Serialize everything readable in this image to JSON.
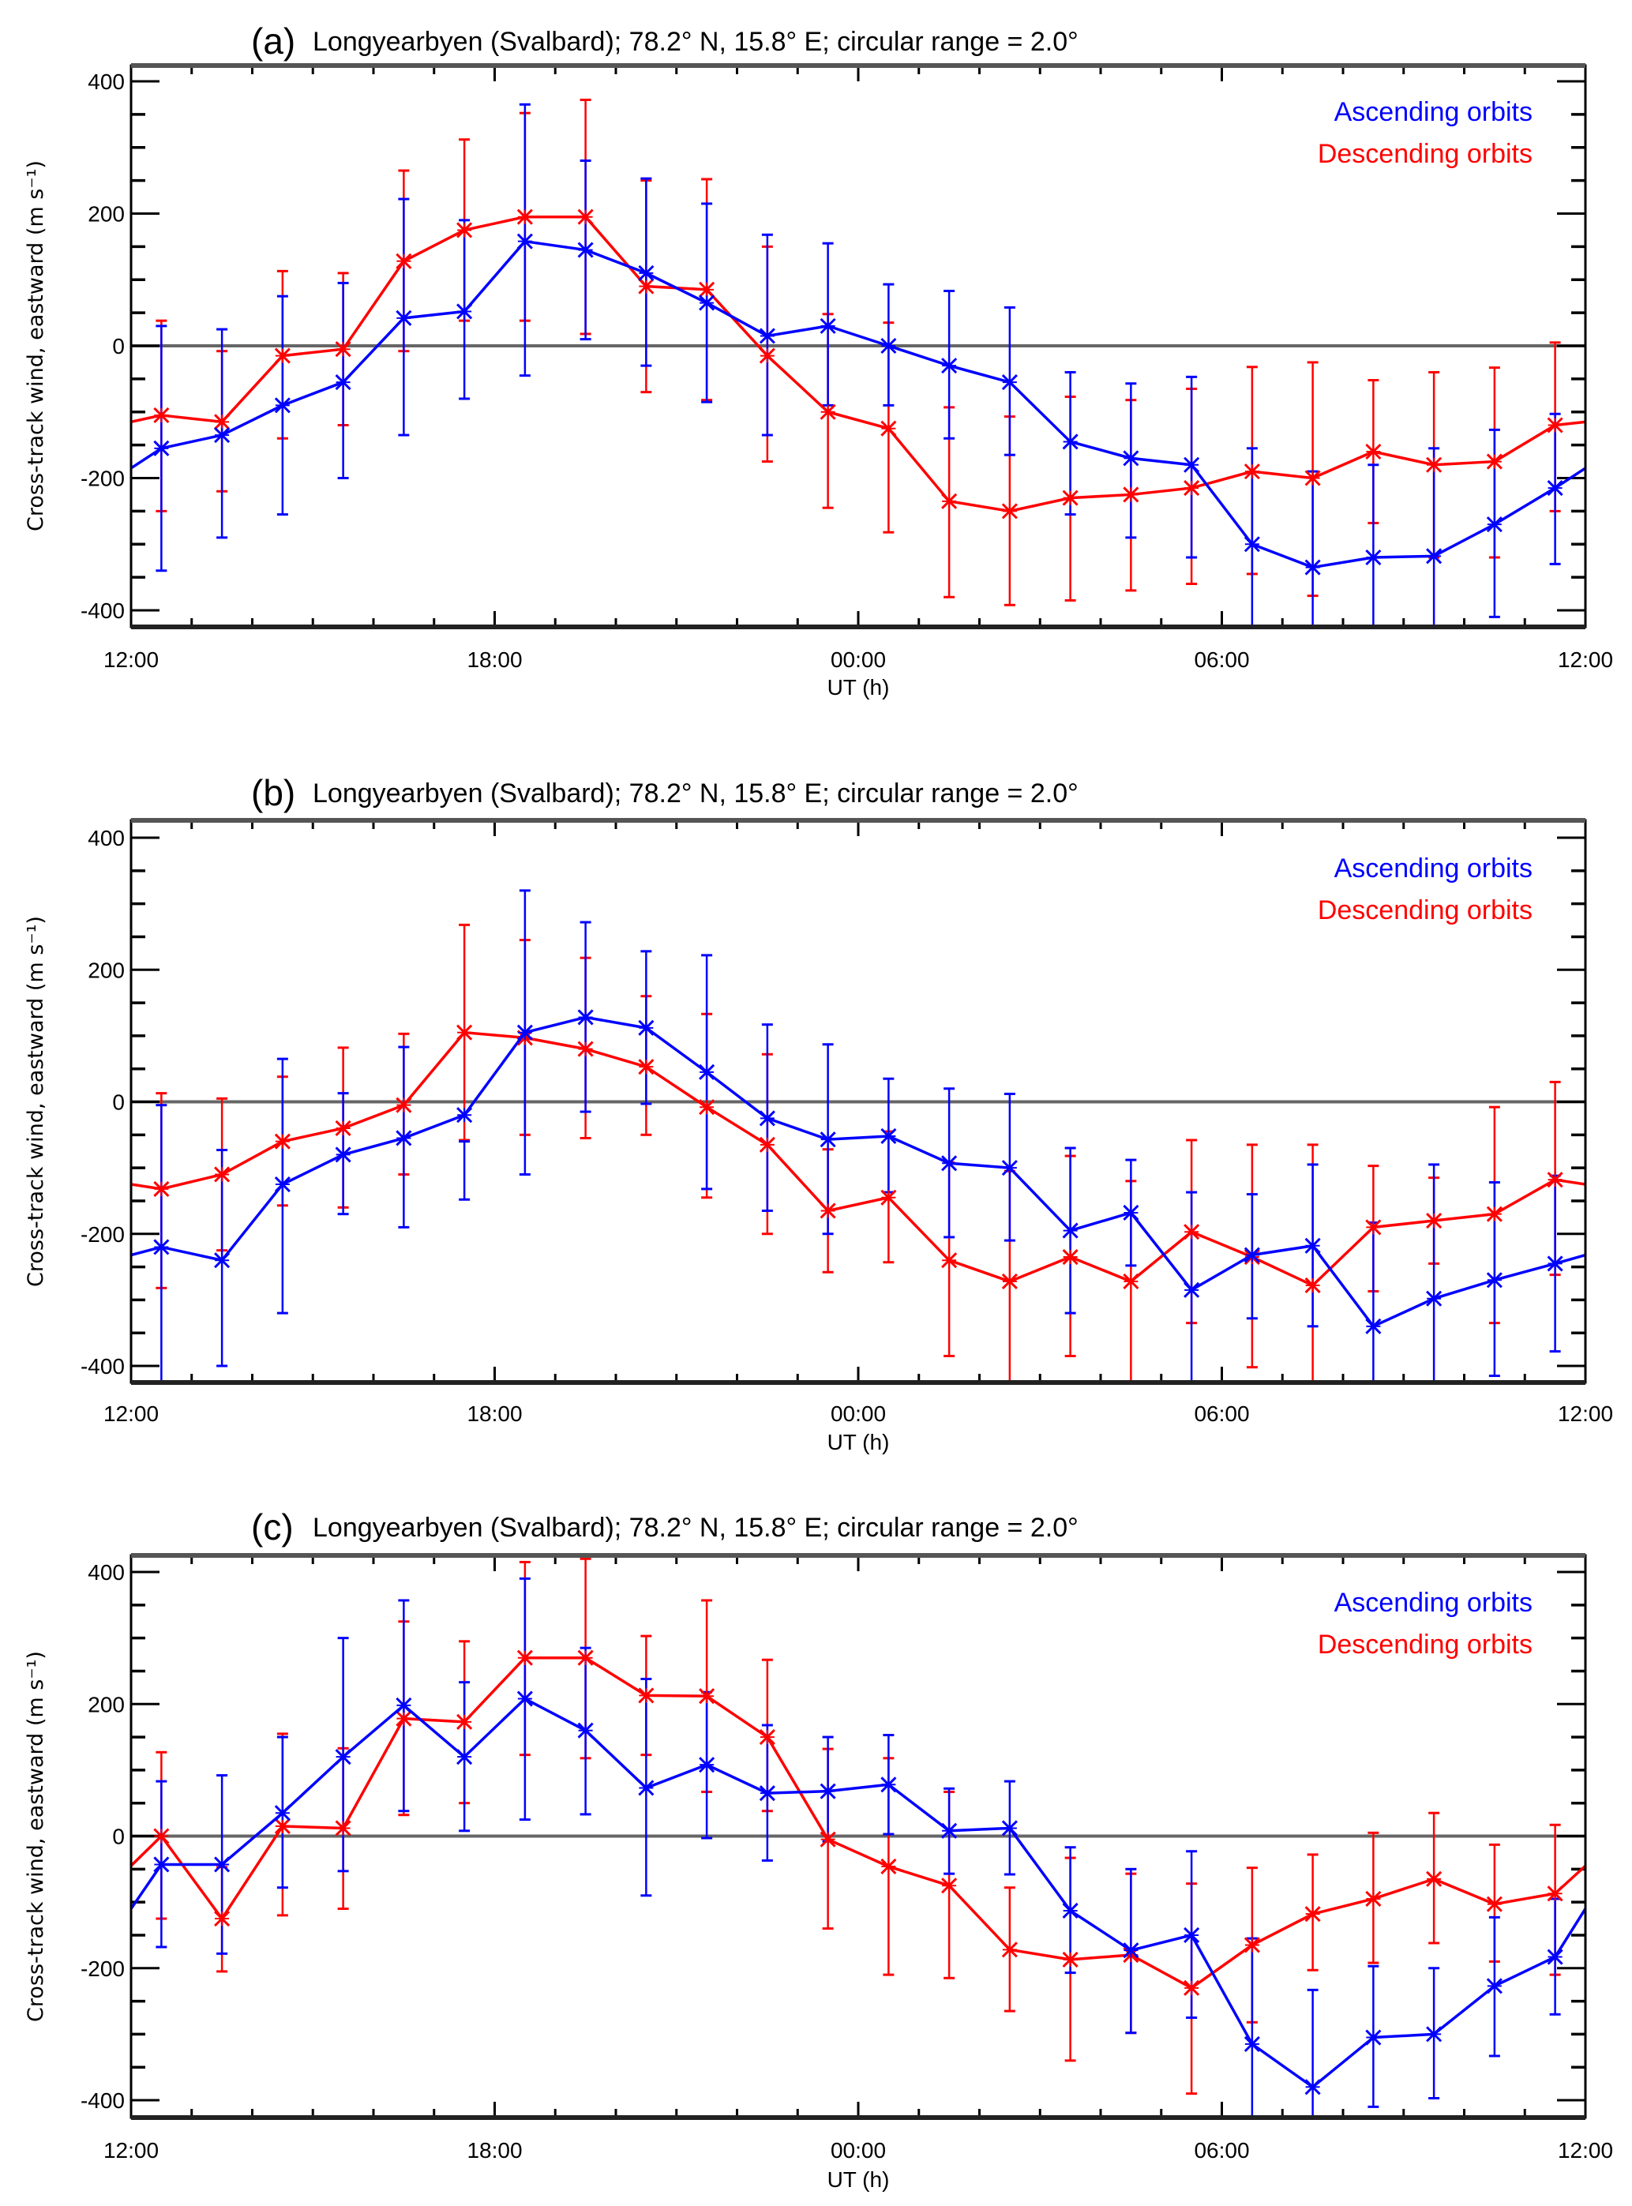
{
  "figure": {
    "colors": {
      "ascending": "#0000ff",
      "descending": "#ff0000",
      "zero_line": "#666666",
      "axis": "#000000"
    }
  },
  "chart_data": [
    {
      "type": "line",
      "panel_tag": "(a)",
      "title": "Longyearbyen (Svalbard); 78.2° N, 15.8° E; circular range = 2.0°",
      "xlabel": "UT (h)",
      "ylabel": "Cross-track wind, eastward (m s⁻¹)",
      "x_tick_labels": [
        "12:00",
        "18:00",
        "00:00",
        "06:00",
        "12:00"
      ],
      "x_range_hours": [
        0,
        24
      ],
      "y_tick_labels": [
        "400",
        "200",
        "0",
        "-200",
        "-400"
      ],
      "ylim": [
        -430,
        430
      ],
      "legend": {
        "placement": "top-right",
        "entries": [
          "Ascending orbits",
          "Descending orbits"
        ]
      },
      "x": [
        0.5,
        1.5,
        2.5,
        3.5,
        4.5,
        5.5,
        6.5,
        7.5,
        8.5,
        9.5,
        10.5,
        11.5,
        12.5,
        13.5,
        14.5,
        15.5,
        16.5,
        17.5,
        18.5,
        19.5,
        20.5,
        21.5,
        22.5,
        23.5
      ],
      "series": [
        {
          "name": "Ascending orbits",
          "color": "#0000ff",
          "edge_values": [
            -185,
            -185
          ],
          "values": [
            -155,
            -135,
            -90,
            -55,
            42,
            52,
            158,
            145,
            110,
            65,
            15,
            30,
            0,
            -30,
            -55,
            -145,
            -170,
            -180,
            -300,
            -335,
            -320,
            -318,
            -270,
            -215
          ],
          "err_low": [
            -340,
            -290,
            -255,
            -200,
            -135,
            -80,
            -45,
            10,
            -30,
            -85,
            -135,
            -90,
            -90,
            -140,
            -165,
            -255,
            -290,
            -320,
            -430,
            -430,
            -430,
            -430,
            -410,
            -330
          ],
          "err_high": [
            30,
            25,
            75,
            95,
            222,
            190,
            365,
            280,
            253,
            215,
            168,
            155,
            93,
            83,
            58,
            -40,
            -57,
            -47,
            -155,
            -190,
            -180,
            -155,
            -127,
            -103
          ]
        },
        {
          "name": "Descending orbits",
          "color": "#ff0000",
          "edge_values": [
            -115,
            -115
          ],
          "values": [
            -105,
            -115,
            -15,
            -5,
            128,
            175,
            195,
            195,
            90,
            85,
            -15,
            -100,
            -125,
            -235,
            -250,
            -230,
            -225,
            -215,
            -190,
            -200,
            -160,
            -180,
            -175,
            -120
          ],
          "err_low": [
            -250,
            -220,
            -140,
            -120,
            -8,
            38,
            38,
            18,
            -70,
            -82,
            -175,
            -245,
            -282,
            -380,
            -392,
            -385,
            -370,
            -360,
            -345,
            -378,
            -268,
            -320,
            -320,
            -250
          ],
          "err_high": [
            38,
            -8,
            113,
            110,
            265,
            312,
            352,
            372,
            250,
            252,
            150,
            48,
            35,
            -93,
            -107,
            -77,
            -82,
            -65,
            -32,
            -25,
            -52,
            -40,
            -33,
            5
          ]
        }
      ]
    },
    {
      "type": "line",
      "panel_tag": "(b)",
      "title": "Longyearbyen (Svalbard); 78.2° N, 15.8° E; circular range = 2.0°",
      "xlabel": "UT (h)",
      "ylabel": "Cross-track wind, eastward (m s⁻¹)",
      "x_tick_labels": [
        "12:00",
        "18:00",
        "00:00",
        "06:00",
        "12:00"
      ],
      "x_range_hours": [
        0,
        24
      ],
      "y_tick_labels": [
        "400",
        "200",
        "0",
        "-200",
        "-400"
      ],
      "ylim": [
        -430,
        430
      ],
      "legend": {
        "placement": "top-right",
        "entries": [
          "Ascending orbits",
          "Descending orbits"
        ]
      },
      "x": [
        0.5,
        1.5,
        2.5,
        3.5,
        4.5,
        5.5,
        6.5,
        7.5,
        8.5,
        9.5,
        10.5,
        11.5,
        12.5,
        13.5,
        14.5,
        15.5,
        16.5,
        17.5,
        18.5,
        19.5,
        20.5,
        21.5,
        22.5,
        23.5
      ],
      "series": [
        {
          "name": "Ascending orbits",
          "color": "#0000ff",
          "edge_values": [
            -232,
            -232
          ],
          "values": [
            -220,
            -240,
            -125,
            -80,
            -55,
            -20,
            105,
            128,
            112,
            45,
            -25,
            -57,
            -52,
            -93,
            -100,
            -195,
            -168,
            -285,
            -232,
            -218,
            -340,
            -298,
            -270,
            -245
          ],
          "err_low": [
            -430,
            -400,
            -320,
            -170,
            -190,
            -148,
            -110,
            -15,
            -3,
            -132,
            -165,
            -200,
            -137,
            -205,
            -210,
            -320,
            -248,
            -430,
            -328,
            -340,
            -430,
            -430,
            -415,
            -378
          ],
          "err_high": [
            -5,
            -73,
            65,
            13,
            83,
            -60,
            320,
            272,
            228,
            222,
            117,
            87,
            35,
            20,
            12,
            -70,
            -88,
            -137,
            -140,
            -95,
            -183,
            -95,
            -122,
            -112
          ]
        },
        {
          "name": "Descending orbits",
          "color": "#ff0000",
          "edge_values": [
            -125,
            -125
          ],
          "values": [
            -132,
            -110,
            -60,
            -40,
            -5,
            105,
            97,
            80,
            53,
            -8,
            -65,
            -165,
            -145,
            -240,
            -272,
            -235,
            -272,
            -197,
            -235,
            -278,
            -190,
            -180,
            -170,
            -118
          ],
          "err_low": [
            -282,
            -225,
            -157,
            -160,
            -110,
            -58,
            -50,
            -55,
            -50,
            -145,
            -200,
            -258,
            -243,
            -385,
            -430,
            -385,
            -430,
            -335,
            -402,
            -430,
            -287,
            -245,
            -335,
            -262
          ],
          "err_high": [
            13,
            5,
            38,
            82,
            103,
            268,
            245,
            218,
            160,
            133,
            72,
            -72,
            -45,
            -92,
            -105,
            -82,
            -120,
            -58,
            -65,
            -65,
            -97,
            -115,
            -8,
            30
          ]
        }
      ]
    },
    {
      "type": "line",
      "panel_tag": "(c)",
      "title": "Longyearbyen (Svalbard); 78.2° N, 15.8° E; circular range = 2.0°",
      "xlabel": "UT (h)",
      "ylabel": "Cross-track wind, eastward (m s⁻¹)",
      "x_tick_labels": [
        "12:00",
        "18:00",
        "00:00",
        "06:00",
        "12:00"
      ],
      "x_range_hours": [
        0,
        24
      ],
      "y_tick_labels": [
        "400",
        "200",
        "0",
        "-200",
        "-400"
      ],
      "ylim": [
        -425,
        425
      ],
      "legend": {
        "placement": "top-right",
        "entries": [
          "Ascending orbits",
          "Descending orbits"
        ]
      },
      "x": [
        0.5,
        1.5,
        2.5,
        3.5,
        4.5,
        5.5,
        6.5,
        7.5,
        8.5,
        9.5,
        10.5,
        11.5,
        12.5,
        13.5,
        14.5,
        15.5,
        16.5,
        17.5,
        18.5,
        19.5,
        20.5,
        21.5,
        22.5,
        23.5
      ],
      "series": [
        {
          "name": "Ascending orbits",
          "color": "#0000ff",
          "edge_values": [
            -110,
            -110
          ],
          "values": [
            -43,
            -43,
            35,
            120,
            198,
            120,
            208,
            160,
            73,
            108,
            65,
            68,
            78,
            8,
            12,
            -113,
            -173,
            -150,
            -315,
            -380,
            -305,
            -300,
            -227,
            -183
          ],
          "err_low": [
            -168,
            -178,
            -78,
            -53,
            38,
            8,
            25,
            33,
            -90,
            -3,
            -37,
            -8,
            3,
            -57,
            -58,
            -207,
            -298,
            -275,
            -425,
            -425,
            -410,
            -397,
            -333,
            -270
          ],
          "err_high": [
            83,
            92,
            150,
            300,
            357,
            233,
            390,
            285,
            238,
            218,
            168,
            150,
            153,
            72,
            83,
            -17,
            -50,
            -23,
            -155,
            -233,
            -197,
            -200,
            -123,
            -95
          ]
        },
        {
          "name": "Descending orbits",
          "color": "#ff0000",
          "edge_values": [
            -45,
            -45
          ],
          "values": [
            0,
            -125,
            15,
            12,
            178,
            173,
            270,
            270,
            213,
            212,
            150,
            -5,
            -46,
            -75,
            -172,
            -187,
            -180,
            -230,
            -165,
            -118,
            -95,
            -65,
            -103,
            -87
          ],
          "err_low": [
            -125,
            -205,
            -120,
            -110,
            32,
            50,
            123,
            118,
            123,
            67,
            38,
            -140,
            -210,
            -215,
            -265,
            -340,
            -298,
            -390,
            -282,
            -203,
            -192,
            -162,
            -190,
            -210
          ],
          "err_high": [
            127,
            -47,
            155,
            133,
            325,
            295,
            415,
            420,
            303,
            357,
            267,
            132,
            118,
            67,
            -78,
            -33,
            -57,
            -72,
            -48,
            -28,
            5,
            35,
            -13,
            17
          ]
        }
      ]
    }
  ]
}
